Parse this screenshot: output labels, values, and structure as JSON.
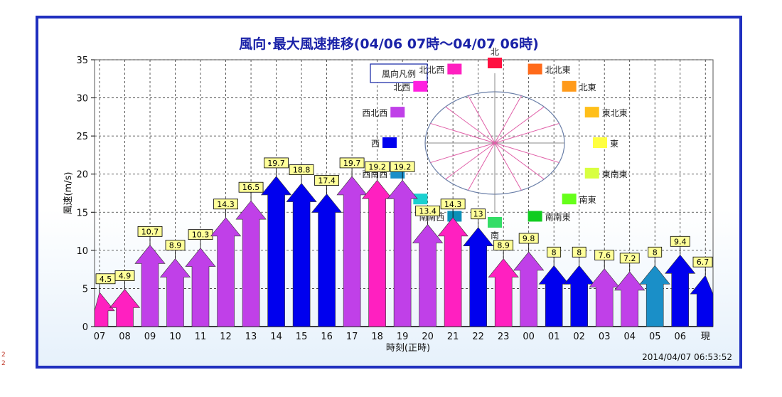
{
  "chart_data": {
    "type": "bar",
    "title": "風向･最大風速推移(04/06 07時～04/07 06時)",
    "xlabel": "時刻(正時)",
    "ylabel": "風速(m/s)",
    "ylim": [
      0,
      35
    ],
    "yticks": [
      0,
      5,
      10,
      15,
      20,
      25,
      30,
      35
    ],
    "categories": [
      "07",
      "08",
      "09",
      "10",
      "11",
      "12",
      "13",
      "14",
      "15",
      "16",
      "17",
      "18",
      "19",
      "20",
      "21",
      "22",
      "23",
      "00",
      "01",
      "02",
      "03",
      "04",
      "05",
      "06",
      "現"
    ],
    "values": [
      4.5,
      4.9,
      10.7,
      8.9,
      10.3,
      14.3,
      16.5,
      19.7,
      18.8,
      17.4,
      19.7,
      19.2,
      19.2,
      13.4,
      14.3,
      13,
      8.9,
      9.8,
      8,
      8,
      7.6,
      7.2,
      8,
      9.4,
      6.7
    ],
    "labels": [
      "4.5",
      "4.9",
      "10.7",
      "8.9",
      "10.3",
      "14.3",
      "16.5",
      "19.7",
      "18.8",
      "17.4",
      "19.7",
      "19.2",
      "19.2",
      "13.4",
      "14.3",
      "13",
      "8.9",
      "9.8",
      "8",
      "8",
      "7.6",
      "7.2",
      "8",
      "9.4",
      "6.7"
    ],
    "directions": [
      "北北西",
      "北北西",
      "西北西",
      "西北西",
      "西北西",
      "西北西",
      "西北西",
      "西",
      "西",
      "西",
      "西北西",
      "北北西",
      "西北西",
      "西北西",
      "北北西",
      "西",
      "北北西",
      "西北西",
      "西",
      "西",
      "西北西",
      "西北西",
      "西南西",
      "西",
      "西"
    ],
    "grid": true,
    "legend": {
      "title": "風向凡例",
      "placement": "top-center",
      "directions": [
        {
          "name": "北",
          "color": "#ff1040"
        },
        {
          "name": "北北東",
          "color": "#ff6a1a"
        },
        {
          "name": "北東",
          "color": "#ff9a1a"
        },
        {
          "name": "東北東",
          "color": "#ffbf1a"
        },
        {
          "name": "東",
          "color": "#ffff40"
        },
        {
          "name": "東南東",
          "color": "#d8ff40"
        },
        {
          "name": "南東",
          "color": "#66ff1a"
        },
        {
          "name": "南南東",
          "color": "#10cc20"
        },
        {
          "name": "南",
          "color": "#33dd66"
        },
        {
          "name": "南南西",
          "color": "#0a90b8"
        },
        {
          "name": "南西",
          "color": "#1ad0d0"
        },
        {
          "name": "西南西",
          "color": "#1a8fc8"
        },
        {
          "name": "西",
          "color": "#0000ee"
        },
        {
          "name": "西北西",
          "color": "#c040e8"
        },
        {
          "name": "北西",
          "color": "#ff20e0"
        },
        {
          "name": "北北西",
          "color": "#ff20c0"
        }
      ]
    }
  },
  "timestamp": "2014/04/07 06:53:52",
  "side_marks": [
    "2",
    "2"
  ]
}
